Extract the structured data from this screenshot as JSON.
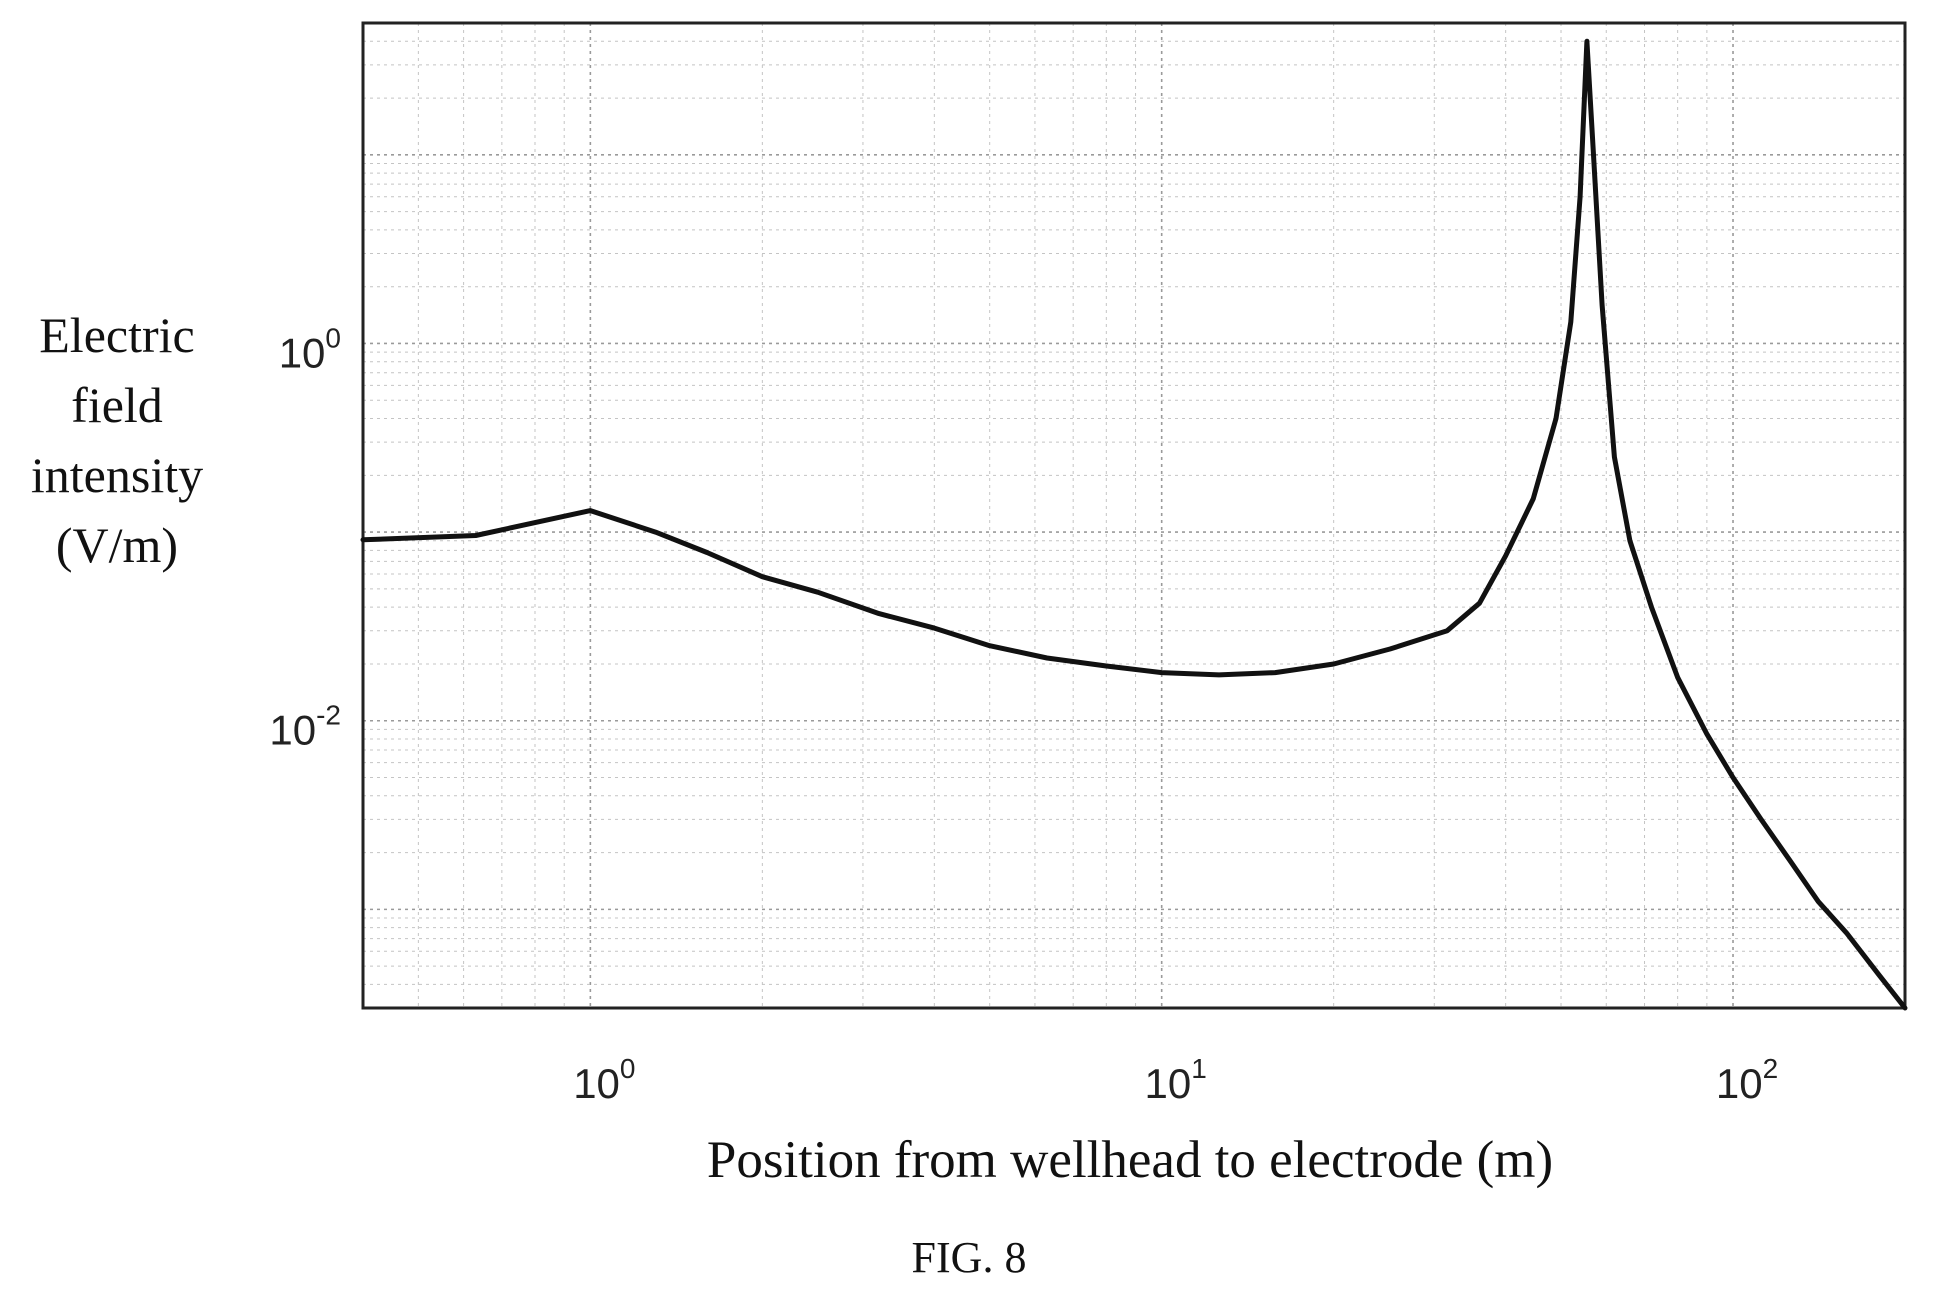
{
  "chart_data": {
    "type": "line",
    "title": "",
    "xlabel": "Position from wellhead to electrode (m)",
    "ylabel_lines": [
      "Electric",
      "field",
      "intensity",
      "(V/m)"
    ],
    "x_scale": "log",
    "y_scale": "log",
    "xlim": [
      0.4,
      200
    ],
    "ylim": [
      0.0003,
      50
    ],
    "x_ticks": [
      {
        "value": 1,
        "base": "10",
        "exp": "0"
      },
      {
        "value": 10,
        "base": "10",
        "exp": "1"
      },
      {
        "value": 100,
        "base": "10",
        "exp": "2"
      }
    ],
    "y_ticks": [
      {
        "value": 0.01,
        "base": "10",
        "exp": "-2"
      },
      {
        "value": 1,
        "base": "10",
        "exp": "0"
      }
    ],
    "grid": true,
    "series": [
      {
        "x": [
          0.4,
          0.63,
          1.0,
          1.3,
          1.6,
          2.0,
          2.5,
          3.2,
          4.0,
          5.0,
          6.3,
          8.0,
          10.0,
          12.6,
          15.8,
          20.0,
          25.1,
          31.6,
          36.0,
          40.0,
          44.7,
          49.0,
          52.0,
          54.0,
          55.5,
          57.0,
          59.0,
          62.0,
          66.0,
          72.0,
          80.0,
          90.0,
          100.0,
          112.0,
          126.0,
          141.0,
          158.0,
          180.0,
          200.0
        ],
        "y": [
          0.091,
          0.096,
          0.13,
          0.1,
          0.078,
          0.058,
          0.048,
          0.037,
          0.031,
          0.025,
          0.0215,
          0.0195,
          0.018,
          0.0175,
          0.018,
          0.02,
          0.024,
          0.03,
          0.042,
          0.075,
          0.15,
          0.4,
          1.3,
          6.0,
          40.0,
          10.0,
          1.6,
          0.25,
          0.09,
          0.04,
          0.017,
          0.0085,
          0.005,
          0.003,
          0.0018,
          0.0011,
          0.00075,
          0.00045,
          0.0003
        ]
      }
    ]
  },
  "caption": "FIG. 8"
}
